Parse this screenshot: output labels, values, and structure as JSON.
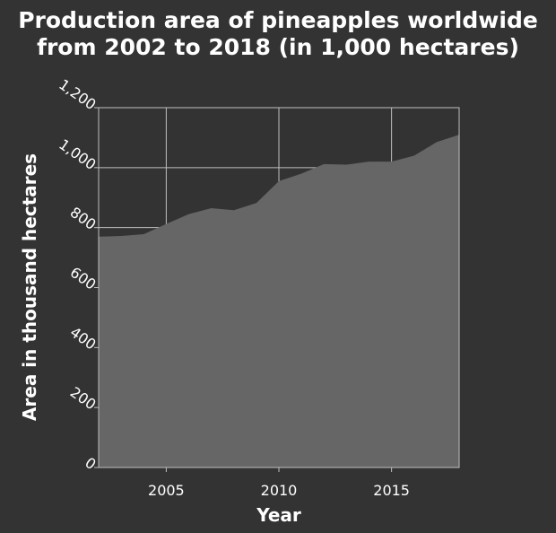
{
  "chart_data": {
    "type": "area",
    "title_lines": [
      "Production area of pineapples worldwide",
      "from 2002 to 2018 (in 1,000 hectares)"
    ],
    "xlabel": "Year",
    "ylabel": "Area in thousand hectares",
    "x": [
      2002,
      2003,
      2004,
      2005,
      2006,
      2007,
      2008,
      2009,
      2010,
      2011,
      2012,
      2013,
      2014,
      2015,
      2016,
      2017,
      2018
    ],
    "series": [
      {
        "values": [
          770,
          772,
          778,
          812,
          845,
          865,
          858,
          882,
          955,
          980,
          1012,
          1010,
          1020,
          1020,
          1040,
          1085,
          1110
        ]
      }
    ],
    "xlim": [
      2002,
      2018
    ],
    "ylim": [
      0,
      1200
    ],
    "xticks": [
      2005,
      2010,
      2015
    ],
    "xtick_labels": [
      "2005",
      "2010",
      "2015"
    ],
    "yticks": [
      0,
      200,
      400,
      600,
      800,
      1000,
      1200
    ],
    "ytick_labels": [
      "0",
      "200",
      "400",
      "600",
      "800",
      "1,000",
      "1,200"
    ],
    "grid": true,
    "colors": {
      "background": "#333333",
      "fill": "#666666",
      "grid": "#bfbfbf",
      "text": "#ffffff"
    }
  }
}
